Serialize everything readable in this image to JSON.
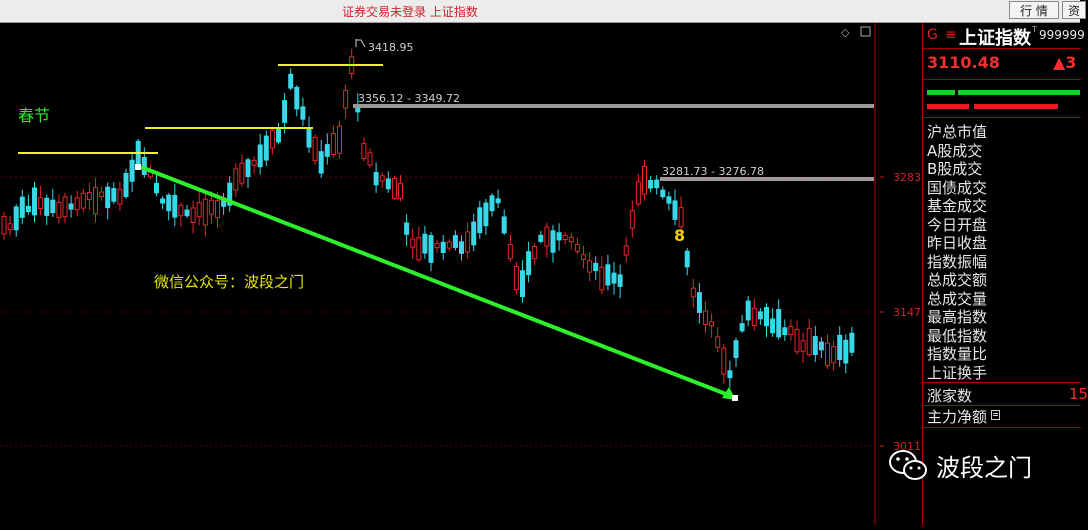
{
  "window": {
    "title": "证券交易未登录 上证指数"
  },
  "toolbar": {
    "btn1": "行 情",
    "btn2": "资"
  },
  "chart_data": {
    "type": "candlestick",
    "yticks": [
      "3283",
      "3147",
      "3011"
    ],
    "annotations": {
      "high": "3418.95",
      "gap1": "3356.12 - 3349.72",
      "gap2": "3281.73 - 3276.78",
      "holiday": "春节",
      "wechat": "微信公众号：波段之门"
    },
    "colors": {
      "up": "#e8242a",
      "down": "#38d8e8",
      "trend": "#2df02d",
      "level": "#f0f028"
    }
  },
  "panel": {
    "code_prefix": "G",
    "eq": "≡",
    "name": "上证指数",
    "code": "999999",
    "price": "3110.48",
    "change": "▲3",
    "rows": [
      "沪总市值",
      "A股成交",
      "B股成交",
      "国债成交",
      "基金成交",
      "今日开盘",
      "昨日收盘",
      "指数振幅",
      "总成交额",
      "总成交量",
      "最高指数",
      "最低指数",
      "指数量比",
      "上证换手"
    ],
    "rise_label": "涨家数",
    "rise_value": "15",
    "netflow_label": "主力净额"
  },
  "watermark": {
    "text": "波段之门"
  }
}
